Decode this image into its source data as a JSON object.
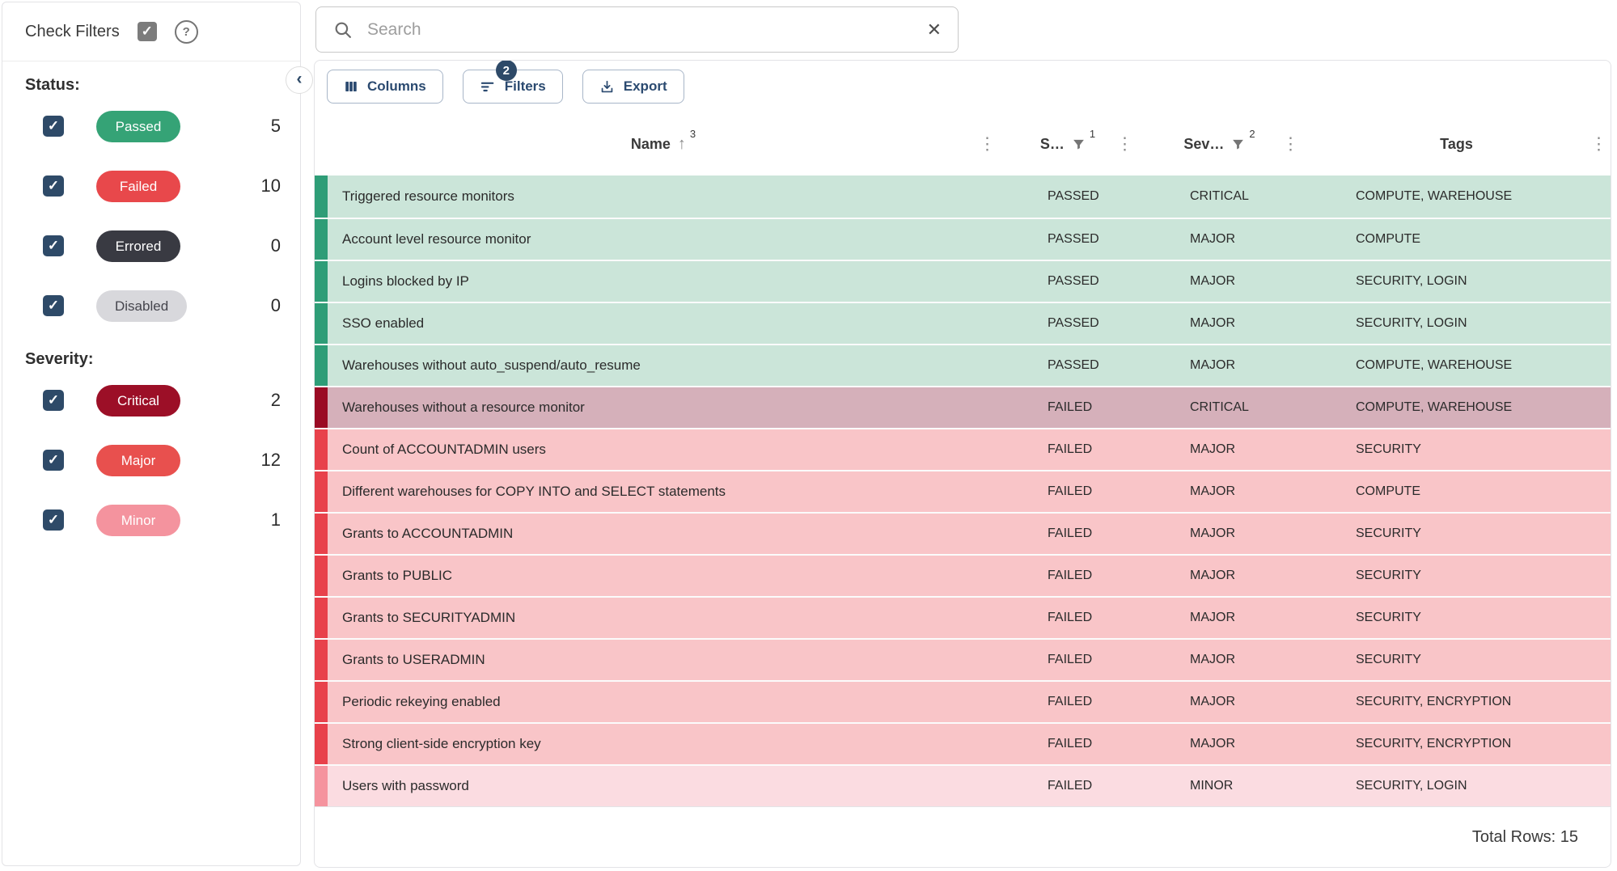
{
  "sidebar": {
    "title": "Check Filters",
    "status_section_label": "Status:",
    "severity_section_label": "Severity:",
    "status_filters": [
      {
        "label": "Passed",
        "count": "5",
        "chip_bg": "#35A376",
        "chip_text": "#FFFFFF",
        "checked": true
      },
      {
        "label": "Failed",
        "count": "10",
        "chip_bg": "#E8484B",
        "chip_text": "#FFFFFF",
        "checked": true
      },
      {
        "label": "Errored",
        "count": "0",
        "chip_bg": "#393A42",
        "chip_text": "#FFFFFF",
        "checked": true
      },
      {
        "label": "Disabled",
        "count": "0",
        "chip_bg": "#D8D8DC",
        "chip_text": "#45454D",
        "checked": true
      }
    ],
    "severity_filters": [
      {
        "label": "Critical",
        "count": "2",
        "chip_bg": "#9C0F27",
        "chip_text": "#FFFFFF",
        "checked": true
      },
      {
        "label": "Major",
        "count": "12",
        "chip_bg": "#E8504E",
        "chip_text": "#FFFFFF",
        "checked": true
      },
      {
        "label": "Minor",
        "count": "1",
        "chip_bg": "#F4939E",
        "chip_text": "#FFFFFF",
        "checked": true
      }
    ]
  },
  "search": {
    "placeholder": "Search"
  },
  "toolbar": {
    "columns_label": "Columns",
    "filters_label": "Filters",
    "filters_badge": "2",
    "export_label": "Export"
  },
  "table": {
    "columns": [
      {
        "label": "Name",
        "sort": "asc",
        "sort_order": "3"
      },
      {
        "label": "S…",
        "filtered": true,
        "badge": "1"
      },
      {
        "label": "Sev…",
        "filtered": true,
        "badge": "2"
      },
      {
        "label": "Tags"
      }
    ],
    "rows": [
      {
        "name": "Triggered resource monitors",
        "status": "PASSED",
        "severity": "CRITICAL",
        "tags": "COMPUTE, WAREHOUSE",
        "row_type": "passed"
      },
      {
        "name": "Account level resource monitor",
        "status": "PASSED",
        "severity": "MAJOR",
        "tags": "COMPUTE",
        "row_type": "passed"
      },
      {
        "name": "Logins blocked by IP",
        "status": "PASSED",
        "severity": "MAJOR",
        "tags": "SECURITY, LOGIN",
        "row_type": "passed"
      },
      {
        "name": "SSO enabled",
        "status": "PASSED",
        "severity": "MAJOR",
        "tags": "SECURITY, LOGIN",
        "row_type": "passed"
      },
      {
        "name": "Warehouses without auto_suspend/auto_resume",
        "status": "PASSED",
        "severity": "MAJOR",
        "tags": "COMPUTE, WAREHOUSE",
        "row_type": "passed"
      },
      {
        "name": "Warehouses without a resource monitor",
        "status": "FAILED",
        "severity": "CRITICAL",
        "tags": "COMPUTE, WAREHOUSE",
        "row_type": "failed_critical"
      },
      {
        "name": "Count of ACCOUNTADMIN users",
        "status": "FAILED",
        "severity": "MAJOR",
        "tags": "SECURITY",
        "row_type": "failed_major"
      },
      {
        "name": "Different warehouses for COPY INTO and SELECT statements",
        "status": "FAILED",
        "severity": "MAJOR",
        "tags": "COMPUTE",
        "row_type": "failed_major"
      },
      {
        "name": "Grants to ACCOUNTADMIN",
        "status": "FAILED",
        "severity": "MAJOR",
        "tags": "SECURITY",
        "row_type": "failed_major"
      },
      {
        "name": "Grants to PUBLIC",
        "status": "FAILED",
        "severity": "MAJOR",
        "tags": "SECURITY",
        "row_type": "failed_major"
      },
      {
        "name": "Grants to SECURITYADMIN",
        "status": "FAILED",
        "severity": "MAJOR",
        "tags": "SECURITY",
        "row_type": "failed_major"
      },
      {
        "name": "Grants to USERADMIN",
        "status": "FAILED",
        "severity": "MAJOR",
        "tags": "SECURITY",
        "row_type": "failed_major"
      },
      {
        "name": "Periodic rekeying enabled",
        "status": "FAILED",
        "severity": "MAJOR",
        "tags": "SECURITY, ENCRYPTION",
        "row_type": "failed_major"
      },
      {
        "name": "Strong client-side encryption key",
        "status": "FAILED",
        "severity": "MAJOR",
        "tags": "SECURITY, ENCRYPTION",
        "row_type": "failed_major"
      },
      {
        "name": "Users with password",
        "status": "FAILED",
        "severity": "MINOR",
        "tags": "SECURITY, LOGIN",
        "row_type": "failed_minor"
      }
    ]
  },
  "footer": {
    "total_rows_label": "Total Rows: 15"
  },
  "colors": {
    "accent_navy": "#2E4A68",
    "row_types": {
      "passed": {
        "bg": "#CBE5D9",
        "stripe": "#2E9D77"
      },
      "failed_critical": {
        "bg": "#D5B0BA",
        "stripe": "#9A0B24"
      },
      "failed_major": {
        "bg": "#F9C5C8",
        "stripe": "#E8414B"
      },
      "failed_minor": {
        "bg": "#FBDCE1",
        "stripe": "#F5939E"
      }
    }
  }
}
